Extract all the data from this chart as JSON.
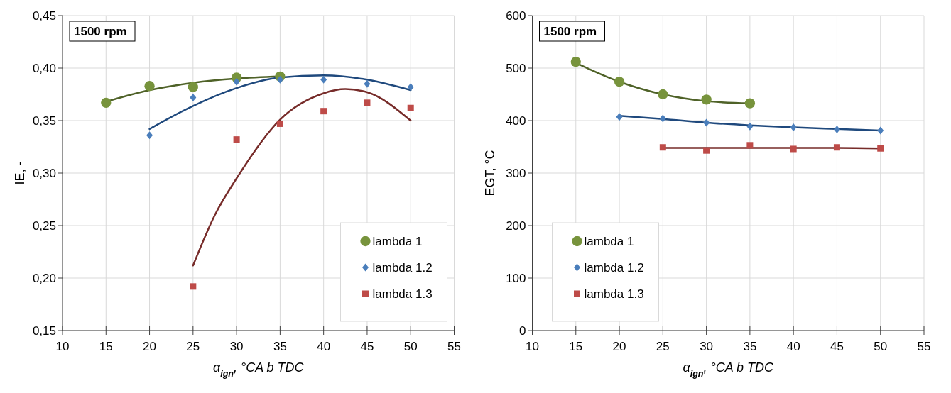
{
  "chart_data": [
    {
      "type": "scatter",
      "xlabel": "α$_{ign}$, °CA b TDC",
      "ylabel": "IE, -",
      "annotations": [
        "1500 rpm"
      ],
      "xlim": [
        10,
        55
      ],
      "xticks": [
        10,
        15,
        20,
        25,
        30,
        35,
        40,
        45,
        50,
        55
      ],
      "ylim": [
        0.15,
        0.45
      ],
      "yticks": [
        {
          "value": 0.15,
          "label": "0,15"
        },
        {
          "value": 0.2,
          "label": "0,20"
        },
        {
          "value": 0.25,
          "label": "0,25"
        },
        {
          "value": 0.3,
          "label": "0,30"
        },
        {
          "value": 0.35,
          "label": "0,35"
        },
        {
          "value": 0.4,
          "label": "0,40"
        },
        {
          "value": 0.45,
          "label": "0,45"
        }
      ],
      "grid": true,
      "legend": "bottom right",
      "series": [
        {
          "type": "line",
          "marker": "none",
          "color": "#4f6228",
          "x": [
            15,
            20,
            25,
            30,
            35
          ],
          "values": [
            0.368,
            0.379,
            0.386,
            0.39,
            0.392
          ]
        },
        {
          "type": "line",
          "marker": "none",
          "color": "#1f497d",
          "x": [
            20,
            25,
            30,
            35,
            40,
            45,
            50
          ],
          "values": [
            0.342,
            0.364,
            0.381,
            0.391,
            0.393,
            0.389,
            0.379
          ]
        },
        {
          "type": "line",
          "marker": "none",
          "color": "#772c2a",
          "x": [
            25,
            27.5,
            30,
            35,
            40,
            42.5,
            45,
            50
          ],
          "values": [
            0.212,
            0.26,
            0.295,
            0.351,
            0.376,
            0.38,
            0.377,
            0.35
          ]
        },
        {
          "name": "lambda 1",
          "marker": "circle",
          "color": "#77933c",
          "x": [
            15,
            20,
            25,
            30,
            35
          ],
          "values": [
            0.367,
            0.383,
            0.382,
            0.391,
            0.392
          ]
        },
        {
          "name": "lambda 1.2",
          "marker": "diamond",
          "color": "#4a7ebb",
          "x": [
            20,
            25,
            30,
            35,
            40,
            45,
            50
          ],
          "values": [
            0.336,
            0.372,
            0.387,
            0.389,
            0.389,
            0.385,
            0.382
          ]
        },
        {
          "name": "lambda 1.3",
          "marker": "square",
          "color": "#be4b48",
          "x": [
            25,
            30,
            35,
            40,
            45,
            50
          ],
          "values": [
            0.192,
            0.332,
            0.347,
            0.359,
            0.367,
            0.362
          ]
        }
      ]
    },
    {
      "type": "scatter",
      "xlabel": "α$_{ign}$, °CA b TDC",
      "ylabel": "EGT, °C",
      "annotations": [
        "1500 rpm"
      ],
      "xlim": [
        10,
        55
      ],
      "xticks": [
        10,
        15,
        20,
        25,
        30,
        35,
        40,
        45,
        50,
        55
      ],
      "ylim": [
        0,
        600
      ],
      "yticks": [
        0,
        100,
        200,
        300,
        400,
        500,
        600
      ],
      "grid": true,
      "legend": "bottom left",
      "series": [
        {
          "type": "line",
          "marker": "none",
          "color": "#4f6228",
          "x": [
            15,
            20,
            25,
            30,
            35
          ],
          "values": [
            510,
            474,
            450,
            437,
            433
          ]
        },
        {
          "type": "line",
          "marker": "none",
          "color": "#1f497d",
          "x": [
            20,
            25,
            30,
            35,
            40,
            45,
            50
          ],
          "values": [
            409,
            403,
            396,
            391,
            387,
            384,
            381
          ]
        },
        {
          "type": "line",
          "marker": "none",
          "color": "#772c2a",
          "x": [
            25,
            30,
            35,
            40,
            45,
            50
          ],
          "values": [
            348,
            348,
            348,
            348,
            348,
            347
          ]
        },
        {
          "name": "lambda 1",
          "marker": "circle",
          "color": "#77933c",
          "x": [
            15,
            20,
            25,
            30,
            35
          ],
          "values": [
            512,
            474,
            450,
            440,
            433
          ]
        },
        {
          "name": "lambda 1.2",
          "marker": "diamond",
          "color": "#4a7ebb",
          "x": [
            20,
            25,
            30,
            35,
            40,
            45,
            50
          ],
          "values": [
            407,
            404,
            396,
            389,
            387,
            383,
            381
          ]
        },
        {
          "name": "lambda 1.3",
          "marker": "square",
          "color": "#be4b48",
          "x": [
            25,
            30,
            35,
            40,
            45,
            50
          ],
          "values": [
            349,
            343,
            353,
            346,
            349,
            347
          ]
        }
      ]
    }
  ]
}
